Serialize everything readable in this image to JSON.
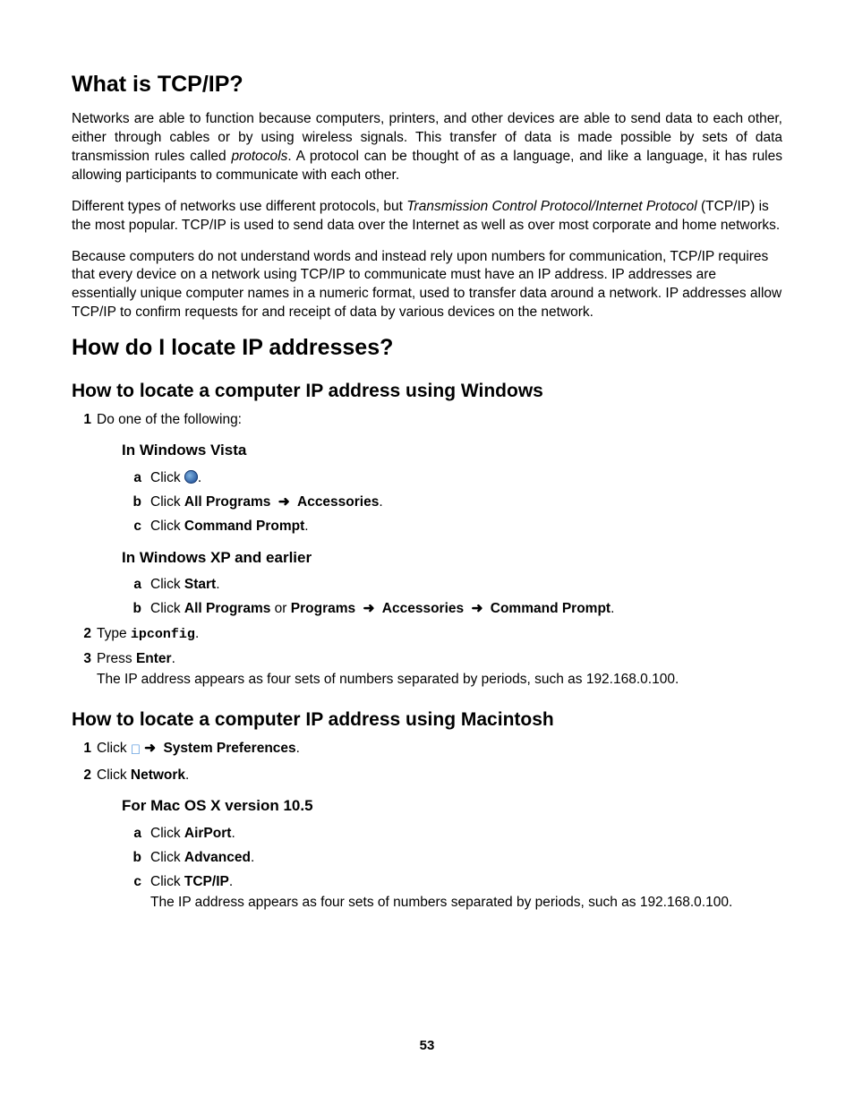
{
  "section1": {
    "heading": "What is TCP/IP?",
    "p1_a": "Networks are able to function because computers, printers, and other devices are able to send data to each other, either through cables or by using wireless signals. This transfer of data is made possible by sets of data transmission rules called ",
    "p1_ital": "protocols",
    "p1_b": ". A protocol can be thought of as a language, and like a language, it has rules allowing participants to communicate with each other.",
    "p2_a": "Different types of networks use different protocols, but ",
    "p2_ital": "Transmission Control Protocol/Internet Protocol",
    "p2_b": " (TCP/IP) is the most popular. TCP/IP is used to send data over the Internet as well as over most corporate and home networks.",
    "p3": "Because computers do not understand words and instead rely upon numbers for communication, TCP/IP requires that every device on a network using TCP/IP to communicate must have an IP address. IP addresses are essentially unique computer names in a numeric format, used to transfer data around a network. IP addresses allow TCP/IP to confirm requests for and receipt of data by various devices on the network."
  },
  "section2": {
    "heading": "How do I locate IP addresses?",
    "sub1": {
      "heading": "How to locate a computer IP address using Windows",
      "step1": "Do one of the following:",
      "vista": {
        "heading": "In Windows Vista",
        "a_pre": "Click ",
        "a_post": ".",
        "b_pre": "Click ",
        "b_bold1": "All Programs",
        "b_arrow": "➜",
        "b_bold2": "Accessories",
        "b_post": ".",
        "c_pre": "Click ",
        "c_bold": "Command Prompt",
        "c_post": "."
      },
      "xp": {
        "heading": "In Windows XP and earlier",
        "a_pre": "Click ",
        "a_bold": "Start",
        "a_post": ".",
        "b_pre": "Click ",
        "b_bold1": "All Programs",
        "b_mid1": " or ",
        "b_bold2": "Programs",
        "b_arrow1": "➜",
        "b_bold3": "Accessories",
        "b_arrow2": "➜",
        "b_bold4": "Command Prompt",
        "b_post": "."
      },
      "step2_pre": "Type ",
      "step2_code": "ipconfig",
      "step2_post": ".",
      "step3_pre": "Press ",
      "step3_bold": "Enter",
      "step3_post": ".",
      "step3_note": "The IP address appears as four sets of numbers separated by periods, such as 192.168.0.100."
    },
    "sub2": {
      "heading": "How to locate a computer IP address using Macintosh",
      "step1_pre": "Click ",
      "step1_arrow": "➜",
      "step1_bold": "System Preferences",
      "step1_post": ".",
      "step2_pre": "Click ",
      "step2_bold": "Network",
      "step2_post": ".",
      "mac105": {
        "heading": "For Mac OS X version 10.5",
        "a_pre": "Click ",
        "a_bold": "AirPort",
        "a_post": ".",
        "b_pre": "Click ",
        "b_bold": "Advanced",
        "b_post": ".",
        "c_pre": "Click ",
        "c_bold": "TCP/IP",
        "c_post": ".",
        "c_note": "The IP address appears as four sets of numbers separated by periods, such as 192.168.0.100."
      }
    }
  },
  "page_number": "53"
}
